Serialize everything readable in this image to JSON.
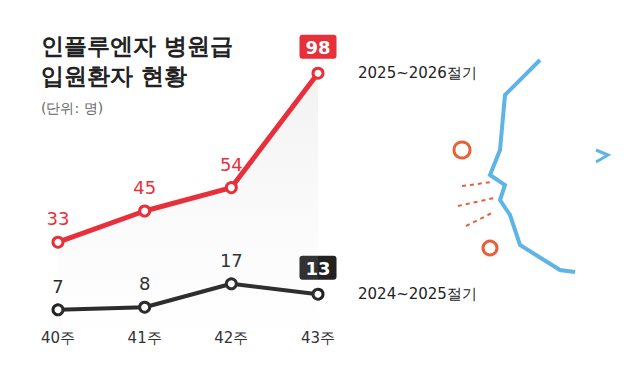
{
  "chart_data": {
    "type": "line",
    "title": "인플루엔자 병원급 입원환자 현황",
    "subtitle": "(단위: 명)",
    "categories": [
      "40주",
      "41주",
      "42주",
      "43주"
    ],
    "series": [
      {
        "name": "2025~2026절기",
        "color": "#e8303a",
        "values": [
          33,
          45,
          54,
          98
        ]
      },
      {
        "name": "2024~2025절기",
        "color": "#222222",
        "values": [
          7,
          8,
          17,
          13
        ]
      }
    ],
    "ylim": [
      0,
      110
    ],
    "grid": false,
    "data_labels": true,
    "tick_labels": "x",
    "marker": "circle"
  }
}
